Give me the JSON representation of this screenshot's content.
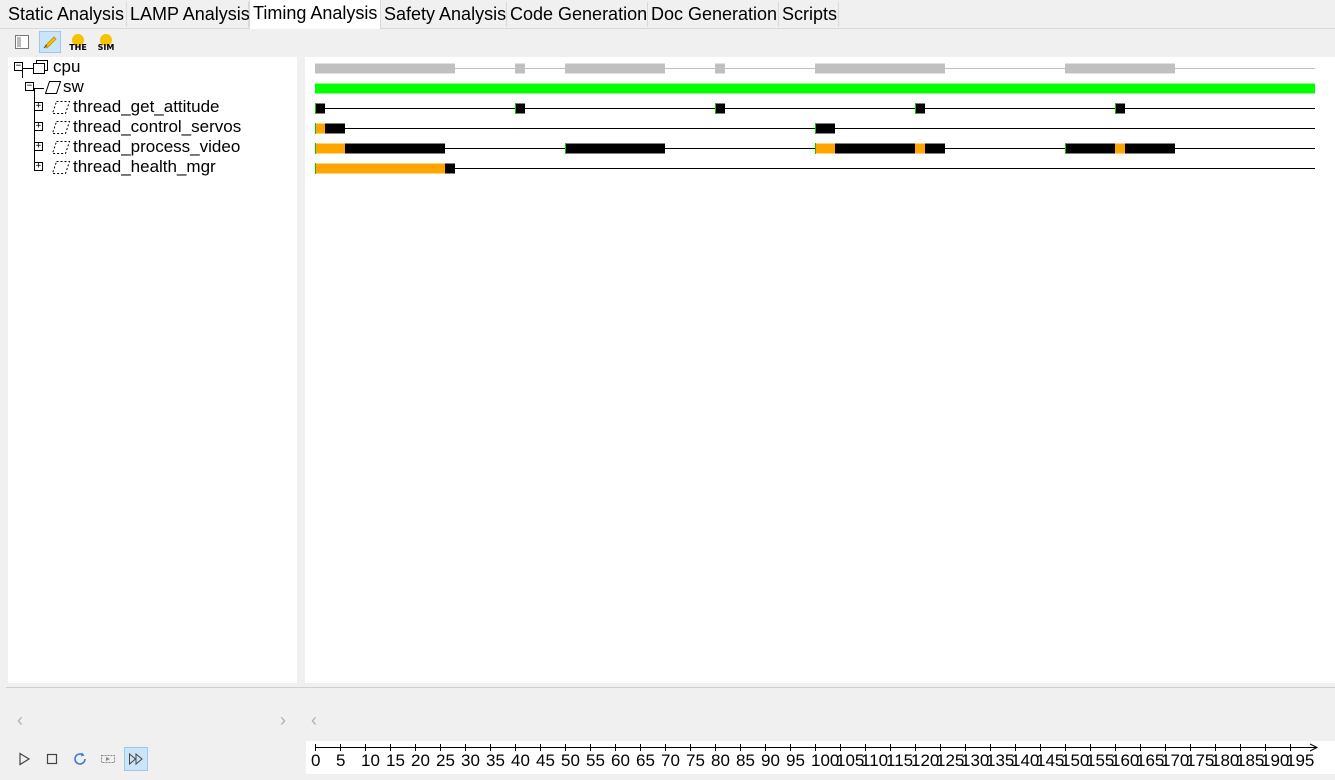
{
  "tabs": [
    {
      "label": "Static Analysis",
      "active": false
    },
    {
      "label": "LAMP Analysis",
      "active": false
    },
    {
      "label": "Timing Analysis",
      "active": true
    },
    {
      "label": "Safety Analysis",
      "active": false
    },
    {
      "label": "Code Generation",
      "active": false
    },
    {
      "label": "Doc Generation",
      "active": false
    },
    {
      "label": "Scripts",
      "active": false
    }
  ],
  "toolbar": {
    "buttons": [
      {
        "icon": "panel-icon",
        "pressed": false
      },
      {
        "icon": "pin-icon",
        "pressed": true
      },
      {
        "icon": "the-icon",
        "label": "THE",
        "pressed": false
      },
      {
        "icon": "sim-icon",
        "label": "SIM",
        "pressed": false
      }
    ]
  },
  "tree": {
    "nodes": [
      {
        "label": "cpu",
        "depth": 0,
        "icon": "processor-icon"
      },
      {
        "label": "sw",
        "depth": 1,
        "icon": "process-icon"
      },
      {
        "label": "thread_get_attitude",
        "depth": 2,
        "icon": "thread-icon"
      },
      {
        "label": "thread_control_servos",
        "depth": 2,
        "icon": "thread-icon"
      },
      {
        "label": "thread_process_video",
        "depth": 2,
        "icon": "thread-icon"
      },
      {
        "label": "thread_health_mgr",
        "depth": 2,
        "icon": "thread-icon"
      }
    ]
  },
  "gantt": {
    "colors": {
      "idle": "#c0c0c0",
      "active": "#00ff00",
      "running": "#000000",
      "ready": "#ffa500",
      "release": "#00cc00"
    },
    "time_max": 200,
    "rows": [
      {
        "name": "cpu",
        "segments": [
          [
            0,
            28,
            "idle"
          ],
          [
            40,
            42,
            "idle"
          ],
          [
            50,
            70,
            "idle"
          ],
          [
            80,
            82,
            "idle"
          ],
          [
            100,
            126,
            "idle"
          ],
          [
            150,
            172,
            "idle"
          ]
        ],
        "line": [
          [
            28,
            40
          ],
          [
            42,
            50
          ],
          [
            70,
            80
          ],
          [
            82,
            100
          ],
          [
            126,
            150
          ],
          [
            172,
            200
          ]
        ],
        "line_color": "idle"
      },
      {
        "name": "sw",
        "segments": [
          [
            0,
            200,
            "active"
          ]
        ],
        "line": []
      },
      {
        "name": "thread_get_attitude",
        "segments": [
          [
            0,
            2,
            "running"
          ],
          [
            40,
            42,
            "running"
          ],
          [
            80,
            82,
            "running"
          ],
          [
            120,
            122,
            "running"
          ],
          [
            160,
            162,
            "running"
          ]
        ],
        "line": [
          [
            0,
            200
          ]
        ],
        "releases": [
          0,
          40,
          80,
          120,
          160
        ]
      },
      {
        "name": "thread_control_servos",
        "segments": [
          [
            0,
            2,
            "ready"
          ],
          [
            2,
            6,
            "running"
          ],
          [
            100,
            104,
            "running"
          ]
        ],
        "line": [
          [
            0,
            200
          ]
        ],
        "releases": [
          0,
          100
        ]
      },
      {
        "name": "thread_process_video",
        "segments": [
          [
            0,
            6,
            "ready"
          ],
          [
            6,
            26,
            "running"
          ],
          [
            50,
            70,
            "running"
          ],
          [
            100,
            104,
            "ready"
          ],
          [
            104,
            120,
            "running"
          ],
          [
            120,
            122,
            "ready"
          ],
          [
            122,
            126,
            "running"
          ],
          [
            150,
            160,
            "running"
          ],
          [
            160,
            162,
            "ready"
          ],
          [
            162,
            172,
            "running"
          ]
        ],
        "line": [
          [
            0,
            200
          ]
        ],
        "releases": [
          0,
          50,
          100,
          150
        ]
      },
      {
        "name": "thread_health_mgr",
        "segments": [
          [
            0,
            26,
            "ready"
          ],
          [
            26,
            28,
            "running"
          ]
        ],
        "line": [
          [
            0,
            200
          ]
        ],
        "releases": [
          0
        ]
      }
    ]
  },
  "controls": [
    {
      "icon": "play-icon",
      "pressed": false
    },
    {
      "icon": "stop-icon",
      "pressed": false
    },
    {
      "icon": "refresh-icon",
      "pressed": false
    },
    {
      "icon": "step-icon",
      "pressed": false
    },
    {
      "icon": "fast-forward-icon",
      "pressed": true
    }
  ],
  "timeline": {
    "ticks": [
      "0",
      "5",
      "10",
      "15",
      "20",
      "25",
      "30",
      "35",
      "40",
      "45",
      "50",
      "55",
      "60",
      "65",
      "70",
      "75",
      "80",
      "85",
      "90",
      "95",
      "100",
      "105",
      "110",
      "115",
      "120",
      "125",
      "130",
      "135",
      "140",
      "145",
      "150",
      "155",
      "160",
      "165",
      "170",
      "175",
      "180",
      "185",
      "190",
      "195"
    ]
  }
}
